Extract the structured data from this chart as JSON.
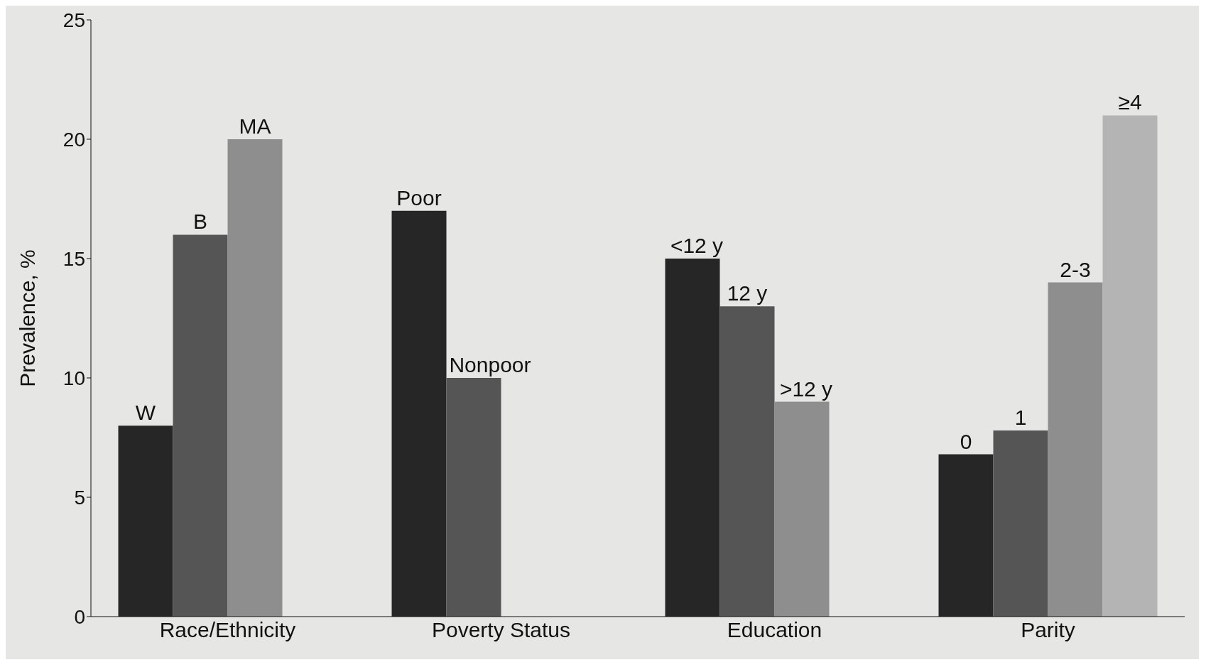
{
  "chart_data": {
    "type": "bar",
    "ylabel": "Prevalence, %",
    "categories": [
      "Race/Ethnicity",
      "Poverty Status",
      "Education",
      "Parity"
    ],
    "series": [
      {
        "color": "#262626",
        "values": [
          8,
          17,
          15,
          6.8
        ]
      },
      {
        "color": "#555555",
        "values": [
          16,
          10,
          13,
          7.8
        ]
      },
      {
        "color": "#8e8e8e",
        "values": [
          20,
          null,
          9,
          14
        ]
      },
      {
        "color": "#b4b4b4",
        "values": [
          null,
          null,
          null,
          21
        ]
      }
    ],
    "annotations": [
      "W",
      "B",
      "MA",
      "Poor",
      "Nonpoor",
      "<12 y",
      "12 y",
      ">12 y",
      "0",
      "1",
      "2-3",
      "≥4"
    ],
    "ylim": [
      0,
      25
    ],
    "yticks": [
      0,
      5,
      10,
      15,
      20,
      25
    ],
    "grid": false,
    "legend": false
  }
}
